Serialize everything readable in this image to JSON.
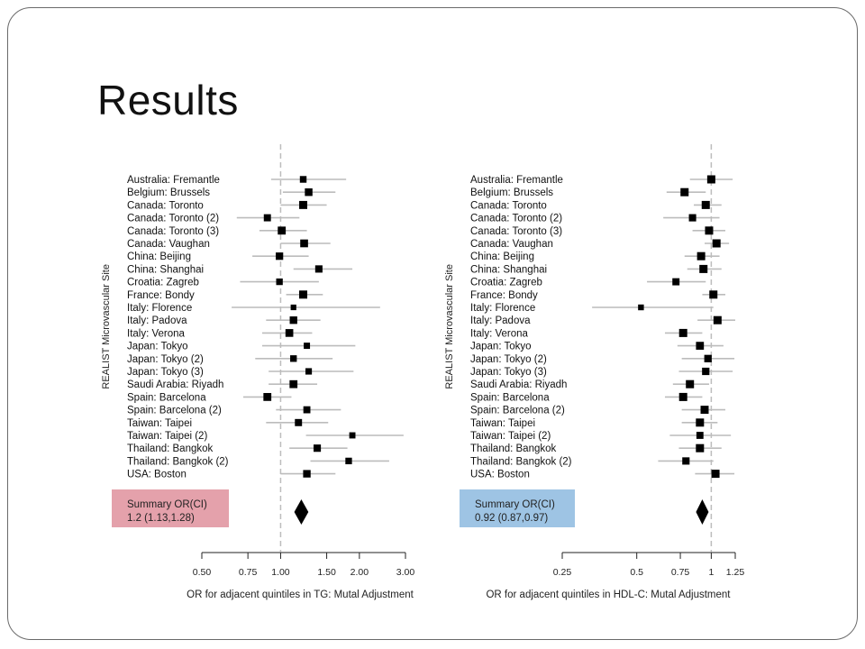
{
  "slide": {
    "title": "Results"
  },
  "chart_data": [
    {
      "type": "forest",
      "ylabel": "REALIST Microvascular Site",
      "xlabel": "OR for adjacent quintiles in TG: Mutal Adjustment",
      "x_scale": "log",
      "xlim": [
        0.5,
        3.0
      ],
      "x_ticks": [
        "0.50",
        "0.75",
        "1.00",
        "1.50",
        "2.00",
        "3.00"
      ],
      "x_tick_values": [
        0.5,
        0.75,
        1.0,
        1.5,
        2.0,
        3.0
      ],
      "reference_line": 1.0,
      "summary_label": "Summary OR(CI)",
      "summary_text": "1.2 (1.13,1.28)",
      "summary": {
        "or": 1.2,
        "lo": 1.13,
        "hi": 1.28
      },
      "summary_color": "#e4a1ab",
      "sites": [
        {
          "name": "Australia: Fremantle",
          "or": 1.22,
          "lo": 0.92,
          "hi": 1.78
        },
        {
          "name": "Belgium: Brussels",
          "or": 1.28,
          "lo": 1.02,
          "hi": 1.62
        },
        {
          "name": "Canada: Toronto",
          "or": 1.22,
          "lo": 1.0,
          "hi": 1.5
        },
        {
          "name": "Canada: Toronto (2)",
          "or": 0.89,
          "lo": 0.68,
          "hi": 1.18
        },
        {
          "name": "Canada: Toronto (3)",
          "or": 1.01,
          "lo": 0.83,
          "hi": 1.26
        },
        {
          "name": "Canada: Vaughan",
          "or": 1.23,
          "lo": 1.0,
          "hi": 1.55
        },
        {
          "name": "China: Beijing",
          "or": 0.99,
          "lo": 0.78,
          "hi": 1.28
        },
        {
          "name": "China: Shanghai",
          "or": 1.4,
          "lo": 1.12,
          "hi": 1.88
        },
        {
          "name": "Croatia: Zagreb",
          "or": 0.99,
          "lo": 0.7,
          "hi": 1.4
        },
        {
          "name": "France: Bondy",
          "or": 1.22,
          "lo": 1.05,
          "hi": 1.45
        },
        {
          "name": "Italy: Florence",
          "or": 1.12,
          "lo": 0.65,
          "hi": 2.4
        },
        {
          "name": "Italy: Padova",
          "or": 1.12,
          "lo": 0.88,
          "hi": 1.42
        },
        {
          "name": "Italy: Verona",
          "or": 1.08,
          "lo": 0.85,
          "hi": 1.32
        },
        {
          "name": "Japan: Tokyo",
          "or": 1.26,
          "lo": 0.85,
          "hi": 1.93
        },
        {
          "name": "Japan: Tokyo (2)",
          "or": 1.12,
          "lo": 0.8,
          "hi": 1.58
        },
        {
          "name": "Japan: Tokyo (3)",
          "or": 1.28,
          "lo": 0.9,
          "hi": 1.9
        },
        {
          "name": "Saudi Arabia: Riyadh",
          "or": 1.12,
          "lo": 0.9,
          "hi": 1.38
        },
        {
          "name": "Spain: Barcelona",
          "or": 0.89,
          "lo": 0.72,
          "hi": 1.1
        },
        {
          "name": "Spain: Barcelona (2)",
          "or": 1.26,
          "lo": 0.96,
          "hi": 1.7
        },
        {
          "name": "Taiwan: Taipei",
          "or": 1.17,
          "lo": 0.88,
          "hi": 1.52
        },
        {
          "name": "Taiwan: Taipei (2)",
          "or": 1.88,
          "lo": 1.25,
          "hi": 2.95
        },
        {
          "name": "Thailand: Bangkok",
          "or": 1.38,
          "lo": 1.08,
          "hi": 1.8
        },
        {
          "name": "Thailand: Bangkok (2)",
          "or": 1.82,
          "lo": 1.3,
          "hi": 2.6
        },
        {
          "name": "USA: Boston",
          "or": 1.26,
          "lo": 1.0,
          "hi": 1.62
        }
      ]
    },
    {
      "type": "forest",
      "ylabel": "REALIST Microvascular Site",
      "xlabel": "OR for adjacent quintiles in HDL-C: Mutal Adjustment",
      "x_scale": "log",
      "xlim": [
        0.25,
        1.25
      ],
      "x_ticks": [
        "0.25",
        "0.5",
        "0.75",
        "1",
        "1.25"
      ],
      "x_tick_values": [
        0.25,
        0.5,
        0.75,
        1.0,
        1.25
      ],
      "reference_line": 1.0,
      "summary_label": "Summary OR(CI)",
      "summary_text": "0.92 (0.87,0.97)",
      "summary": {
        "or": 0.92,
        "lo": 0.87,
        "hi": 0.97
      },
      "summary_color": "#9ec4e4",
      "sites": [
        {
          "name": "Australia: Fremantle",
          "or": 1.0,
          "lo": 0.82,
          "hi": 1.22
        },
        {
          "name": "Belgium: Brussels",
          "or": 0.78,
          "lo": 0.66,
          "hi": 0.95
        },
        {
          "name": "Canada: Toronto",
          "or": 0.95,
          "lo": 0.85,
          "hi": 1.1
        },
        {
          "name": "Canada: Toronto (2)",
          "or": 0.84,
          "lo": 0.64,
          "hi": 1.08
        },
        {
          "name": "Canada: Toronto (3)",
          "or": 0.98,
          "lo": 0.84,
          "hi": 1.14
        },
        {
          "name": "Canada: Vaughan",
          "or": 1.05,
          "lo": 0.94,
          "hi": 1.18
        },
        {
          "name": "China: Beijing",
          "or": 0.91,
          "lo": 0.78,
          "hi": 1.08
        },
        {
          "name": "China: Shanghai",
          "or": 0.93,
          "lo": 0.8,
          "hi": 1.1
        },
        {
          "name": "Croatia: Zagreb",
          "or": 0.72,
          "lo": 0.55,
          "hi": 0.95
        },
        {
          "name": "France: Bondy",
          "or": 1.02,
          "lo": 0.92,
          "hi": 1.14
        },
        {
          "name": "Italy: Florence",
          "or": 0.52,
          "lo": 0.33,
          "hi": 1.02
        },
        {
          "name": "Italy: Padova",
          "or": 1.06,
          "lo": 0.88,
          "hi": 1.25
        },
        {
          "name": "Italy: Verona",
          "or": 0.77,
          "lo": 0.65,
          "hi": 0.92
        },
        {
          "name": "Japan: Tokyo",
          "or": 0.9,
          "lo": 0.73,
          "hi": 1.12
        },
        {
          "name": "Japan: Tokyo (2)",
          "or": 0.97,
          "lo": 0.76,
          "hi": 1.24
        },
        {
          "name": "Japan: Tokyo (3)",
          "or": 0.95,
          "lo": 0.74,
          "hi": 1.22
        },
        {
          "name": "Saudi Arabia: Riyadh",
          "or": 0.82,
          "lo": 0.7,
          "hi": 0.98
        },
        {
          "name": "Spain: Barcelona",
          "or": 0.77,
          "lo": 0.65,
          "hi": 0.92
        },
        {
          "name": "Spain: Barcelona (2)",
          "or": 0.94,
          "lo": 0.76,
          "hi": 1.14
        },
        {
          "name": "Taiwan: Taipei",
          "or": 0.9,
          "lo": 0.76,
          "hi": 1.06
        },
        {
          "name": "Taiwan: Taipei (2)",
          "or": 0.9,
          "lo": 0.68,
          "hi": 1.2
        },
        {
          "name": "Thailand: Bangkok",
          "or": 0.9,
          "lo": 0.74,
          "hi": 1.1
        },
        {
          "name": "Thailand: Bangkok (2)",
          "or": 0.79,
          "lo": 0.61,
          "hi": 1.02
        },
        {
          "name": "USA: Boston",
          "or": 1.04,
          "lo": 0.86,
          "hi": 1.24
        }
      ]
    }
  ]
}
